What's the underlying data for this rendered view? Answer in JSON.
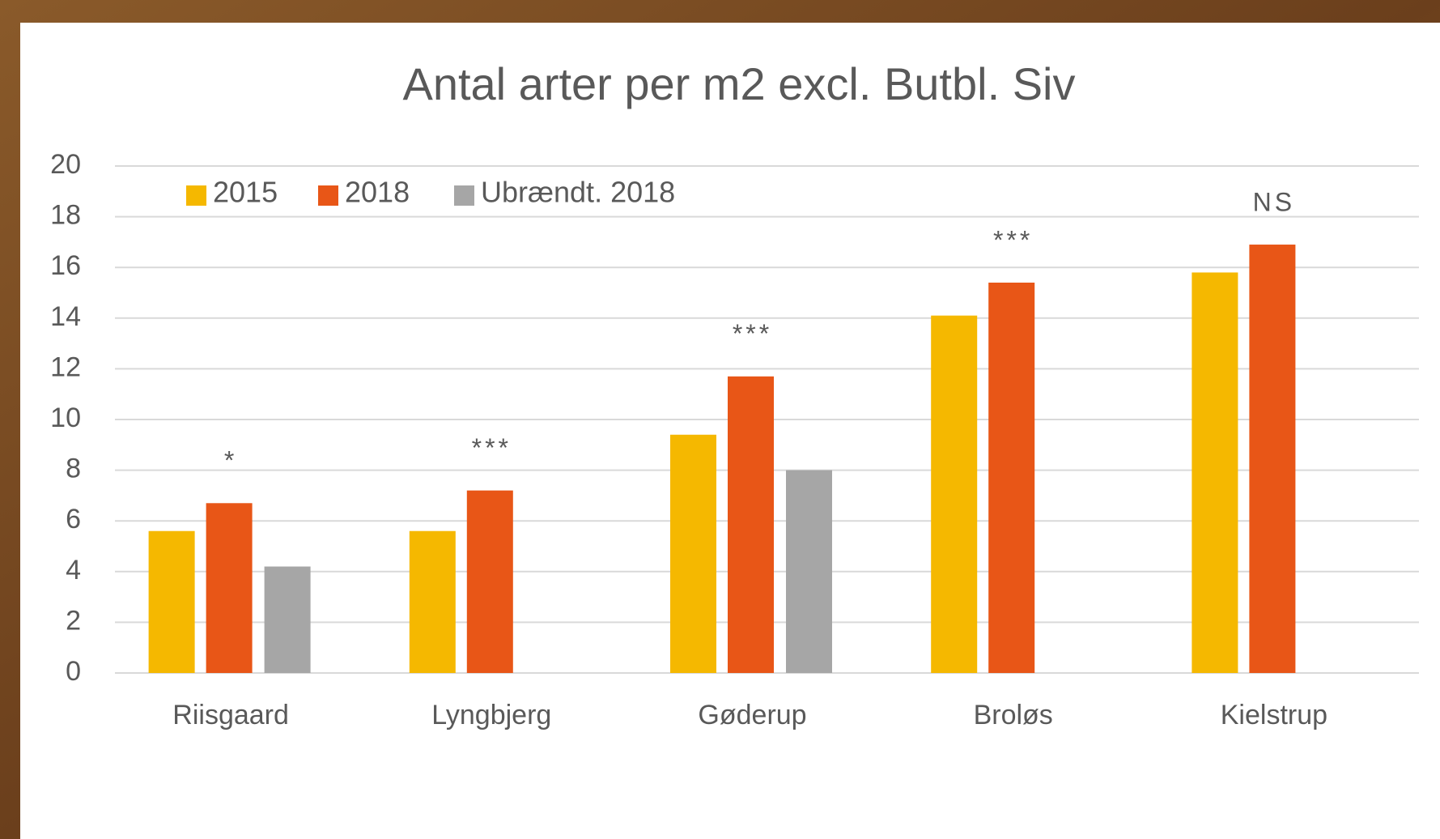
{
  "chart_data": {
    "type": "bar",
    "title": "Antal arter per m2 excl. Butbl. Siv",
    "categories": [
      "Riisgaard",
      "Lyngbjerg",
      "Gøderup",
      "Broløs",
      "Kielstrup"
    ],
    "series": [
      {
        "name": "2015",
        "color": "#f5b800",
        "values": [
          5.6,
          5.6,
          9.4,
          14.1,
          15.8
        ]
      },
      {
        "name": "2018",
        "color": "#e85617",
        "values": [
          6.7,
          7.2,
          11.7,
          15.4,
          16.9
        ]
      },
      {
        "name": "Ubrændt. 2018",
        "color": "#a6a6a6",
        "values": [
          4.2,
          null,
          8.0,
          null,
          null
        ]
      }
    ],
    "annotations": [
      "*",
      "***",
      "***",
      "***",
      "NS"
    ],
    "ylim": [
      0,
      20
    ],
    "yticks": [
      0,
      2,
      4,
      6,
      8,
      10,
      12,
      14,
      16,
      18,
      20
    ],
    "grid": true,
    "legend": "top-left"
  }
}
